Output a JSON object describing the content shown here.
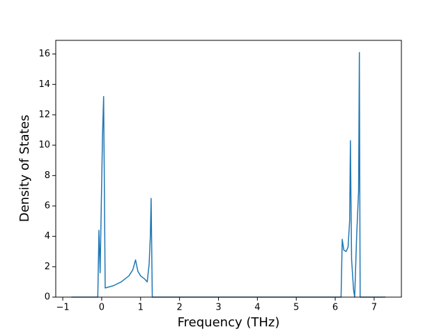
{
  "chart_data": {
    "type": "line",
    "x_label": "Frequency (THz)",
    "y_label": "Density of States",
    "color": "#1f77b4",
    "x": [
      -0.78,
      -0.1,
      -0.07,
      -0.04,
      0.02,
      0.05,
      0.09,
      0.3,
      0.5,
      0.7,
      0.8,
      0.87,
      0.93,
      1.0,
      1.1,
      1.17,
      1.22,
      1.25,
      1.27,
      1.3,
      6.15,
      6.18,
      6.22,
      6.28,
      6.33,
      6.37,
      6.39,
      6.42,
      6.47,
      6.5,
      6.55,
      6.6,
      6.62,
      6.64,
      7.29
    ],
    "values": [
      0,
      0,
      4.4,
      1.6,
      10.5,
      13.2,
      0.6,
      0.75,
      1.0,
      1.4,
      1.8,
      2.45,
      1.7,
      1.4,
      1.2,
      1.0,
      2.2,
      4.0,
      6.5,
      0,
      0,
      3.8,
      3.1,
      3.0,
      3.3,
      5.0,
      10.3,
      2.5,
      0.5,
      0,
      4.0,
      7.0,
      16.1,
      0,
      0
    ],
    "xlim": [
      -1.18,
      7.7
    ],
    "ylim": [
      0,
      16.9
    ],
    "xticks": [
      {
        "value": -1,
        "label": "−1"
      },
      0,
      1,
      2,
      3,
      4,
      5,
      6,
      7
    ],
    "yticks": [
      0,
      2,
      4,
      6,
      8,
      10,
      12,
      14,
      16
    ],
    "grid": false
  }
}
